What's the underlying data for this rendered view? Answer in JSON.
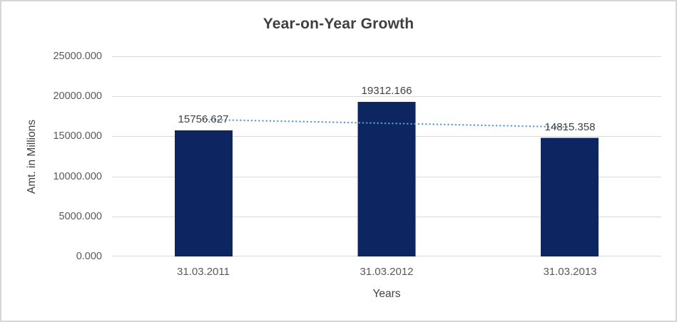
{
  "chart_data": {
    "type": "bar",
    "title": "Year-on-Year Growth",
    "xlabel": "Years",
    "ylabel": "Amt. in Millions",
    "categories": [
      "31.03.2011",
      "31.03.2012",
      "31.03.2013"
    ],
    "values": [
      15756.627,
      19312.166,
      14815.358
    ],
    "data_labels": [
      "15756.627",
      "19312.166",
      "14815.358"
    ],
    "y_ticks": [
      0,
      5000,
      10000,
      15000,
      20000,
      25000
    ],
    "y_tick_labels": [
      "0.000",
      "5000.000",
      "10000.000",
      "15000.000",
      "20000.000",
      "25000.000"
    ],
    "ylim": [
      0,
      25000
    ],
    "grid": true,
    "legend": "none",
    "trendline": {
      "type": "linear",
      "style": "dotted"
    },
    "colors": {
      "bar": "#0d2561",
      "trendline": "#5b9bd5",
      "gridline": "#d9d9d9",
      "title": "#3f3f3f",
      "axis_title": "#404040",
      "tick_label": "#595959",
      "data_label": "#404040",
      "background": "#ffffff",
      "border": "#d6d6d6"
    }
  }
}
